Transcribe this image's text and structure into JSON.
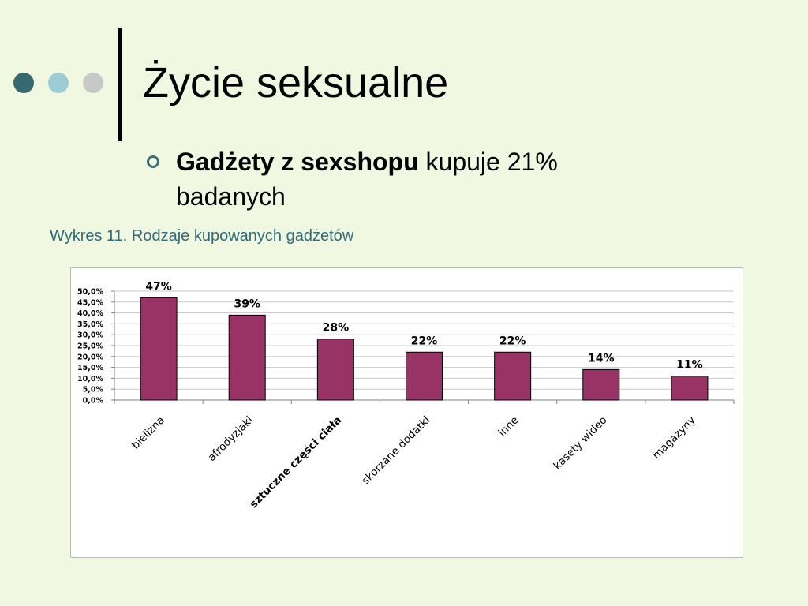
{
  "slide": {
    "title": "Życie seksualne",
    "bullet_bold": "Gadżety z sexshopu",
    "bullet_rest": " kupuje 21% badanych",
    "caption": "Wykres 11. Rodzaje kupowanych gadżetów",
    "dot_colors": [
      "#366a6e",
      "#9ccdd5",
      "#c8c8c8"
    ],
    "accent_color": "#3d6e7c"
  },
  "chart_data": {
    "type": "bar",
    "title": "",
    "xlabel": "",
    "ylabel": "",
    "categories": [
      "bielizna",
      "afrodyzjaki",
      "sztuczne części ciała",
      "skorzane dodatki",
      "inne",
      "kasety wideo",
      "magazyny"
    ],
    "values": [
      47,
      39,
      28,
      22,
      22,
      14,
      11
    ],
    "data_labels": [
      "47%",
      "39%",
      "28%",
      "22%",
      "22%",
      "14%",
      "11%"
    ],
    "y_ticks": [
      "0,0%",
      "5,0%",
      "10,0%",
      "15,0%",
      "20,0%",
      "25,0%",
      "30,0%",
      "35,0%",
      "40,0%",
      "45,0%",
      "50,0%"
    ],
    "ylim": [
      0,
      50
    ],
    "grid": true,
    "bar_color": "#993366"
  }
}
